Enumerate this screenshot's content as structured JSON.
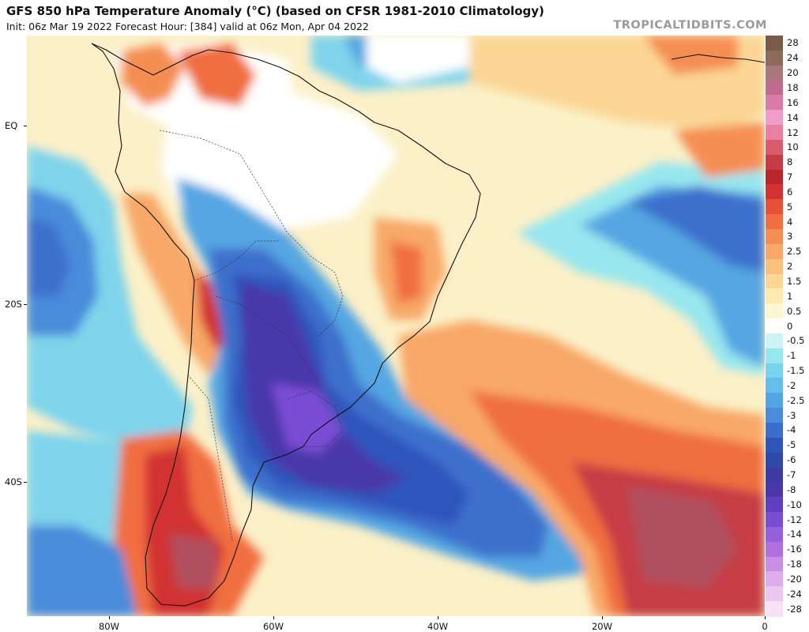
{
  "header": {
    "title": "GFS 850 hPa Temperature Anomaly (°C) (based on CFSR 1981-2010 Climatology)",
    "subtitle": "Init: 06z Mar 19 2022   Forecast Hour: [384]   valid at 06z Mon, Apr 04 2022",
    "brand": "TROPICALTIDBITS.COM"
  },
  "axes": {
    "lat_labels": [
      "EQ",
      "20S",
      "40S"
    ],
    "lon_labels": [
      "80W",
      "60W",
      "40W",
      "20W",
      "0"
    ]
  },
  "colorbar": {
    "labels": [
      "28",
      "24",
      "20",
      "18",
      "16",
      "14",
      "12",
      "10",
      "8",
      "7",
      "6",
      "5",
      "4",
      "3",
      "2.5",
      "2",
      "1.5",
      "1",
      "0.5",
      "0",
      "-0.5",
      "-1",
      "-1.5",
      "-2",
      "-2.5",
      "-3",
      "-4",
      "-5",
      "-6",
      "-7",
      "-8",
      "-10",
      "-12",
      "-14",
      "-16",
      "-18",
      "-20",
      "-24",
      "-28"
    ],
    "colors": [
      "#7a5a48",
      "#8e6a58",
      "#a8787e",
      "#c06a8e",
      "#d97aa8",
      "#ef9cc8",
      "#e880a4",
      "#d85c6c",
      "#c63c44",
      "#b8262c",
      "#d23232",
      "#e8503a",
      "#f06e40",
      "#f58e52",
      "#f8a868",
      "#f9c07e",
      "#fbd694",
      "#fdeab0",
      "#fdf6d2",
      "#ffffff",
      "#ccf4f4",
      "#98e6ee",
      "#78d4ec",
      "#64bfe8",
      "#54a6e2",
      "#4a8cda",
      "#3c6fcc",
      "#2f55bc",
      "#3048a8",
      "#3c3ca0",
      "#4a38aa",
      "#6040c0",
      "#7a4ed4",
      "#9660dc",
      "#b070e0",
      "#c890e4",
      "#dcacec",
      "#ecc6f0",
      "#f8e0f6"
    ]
  }
}
